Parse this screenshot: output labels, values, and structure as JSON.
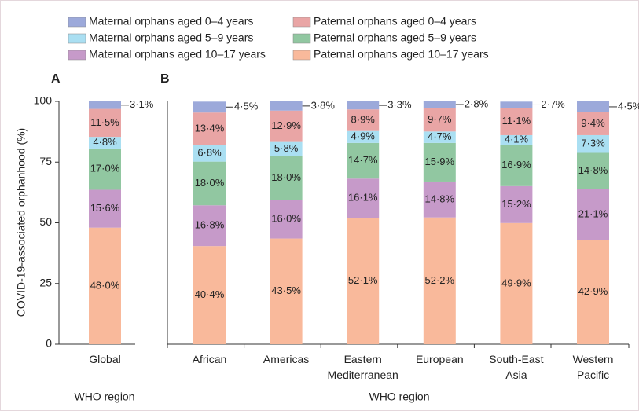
{
  "chart_data": {
    "type": "bar",
    "stacked": true,
    "ylabel": "COVID-19-associated orphanhood (%)",
    "ylim": [
      0,
      100
    ],
    "yticks": [
      0,
      25,
      50,
      75,
      100
    ],
    "panels": [
      {
        "label": "A",
        "xlabel": "WHO region",
        "categories": [
          "Global"
        ]
      },
      {
        "label": "B",
        "xlabel": "WHO region",
        "categories": [
          "African",
          "Americas",
          "Eastern\nMediterranean",
          "European",
          "South-East\nAsia",
          "Western\nPacific"
        ]
      }
    ],
    "series": [
      {
        "name": "Paternal orphans aged 10–17 years",
        "color": "#f9b99b",
        "values": [
          48.0,
          40.4,
          43.5,
          52.1,
          52.2,
          49.9,
          42.9
        ],
        "value_labels": [
          "48·0%",
          "40·4%",
          "43·5%",
          "52·1%",
          "52·2%",
          "49·9%",
          "42·9%"
        ]
      },
      {
        "name": "Maternal orphans aged 10–17 years",
        "color": "#c69ac9",
        "values": [
          15.6,
          16.8,
          16.0,
          16.1,
          14.8,
          15.2,
          21.1
        ],
        "value_labels": [
          "15·6%",
          "16·8%",
          "16·0%",
          "16·1%",
          "14·8%",
          "15·2%",
          "21·1%"
        ]
      },
      {
        "name": "Paternal orphans aged 5–9 years",
        "color": "#91c7a1",
        "values": [
          17.0,
          18.0,
          18.0,
          14.7,
          15.9,
          16.9,
          14.8
        ],
        "value_labels": [
          "17·0%",
          "18·0%",
          "18·0%",
          "14·7%",
          "15·9%",
          "16·9%",
          "14·8%"
        ]
      },
      {
        "name": "Maternal orphans aged 5–9 years",
        "color": "#aadff2",
        "values": [
          4.8,
          6.8,
          5.8,
          4.9,
          4.7,
          4.1,
          7.3
        ],
        "value_labels": [
          "4·8%",
          "6·8%",
          "5·8%",
          "4·9%",
          "4·7%",
          "4·1%",
          "7·3%"
        ]
      },
      {
        "name": "Paternal orphans aged 0–4 years",
        "color": "#e9a5a5",
        "values": [
          11.5,
          13.4,
          12.9,
          8.9,
          9.7,
          11.1,
          9.4
        ],
        "value_labels": [
          "11·5%",
          "13·4%",
          "12·9%",
          "8·9%",
          "9·7%",
          "11·1%",
          "9·4%"
        ]
      },
      {
        "name": "Maternal orphans aged 0–4 years",
        "color": "#9ca9da",
        "values": [
          3.1,
          4.5,
          3.8,
          3.3,
          2.8,
          2.7,
          4.5
        ],
        "value_labels": [
          "3·1%",
          "4·5%",
          "3·8%",
          "3·3%",
          "2·8%",
          "2·7%",
          "4·5%"
        ]
      }
    ]
  }
}
